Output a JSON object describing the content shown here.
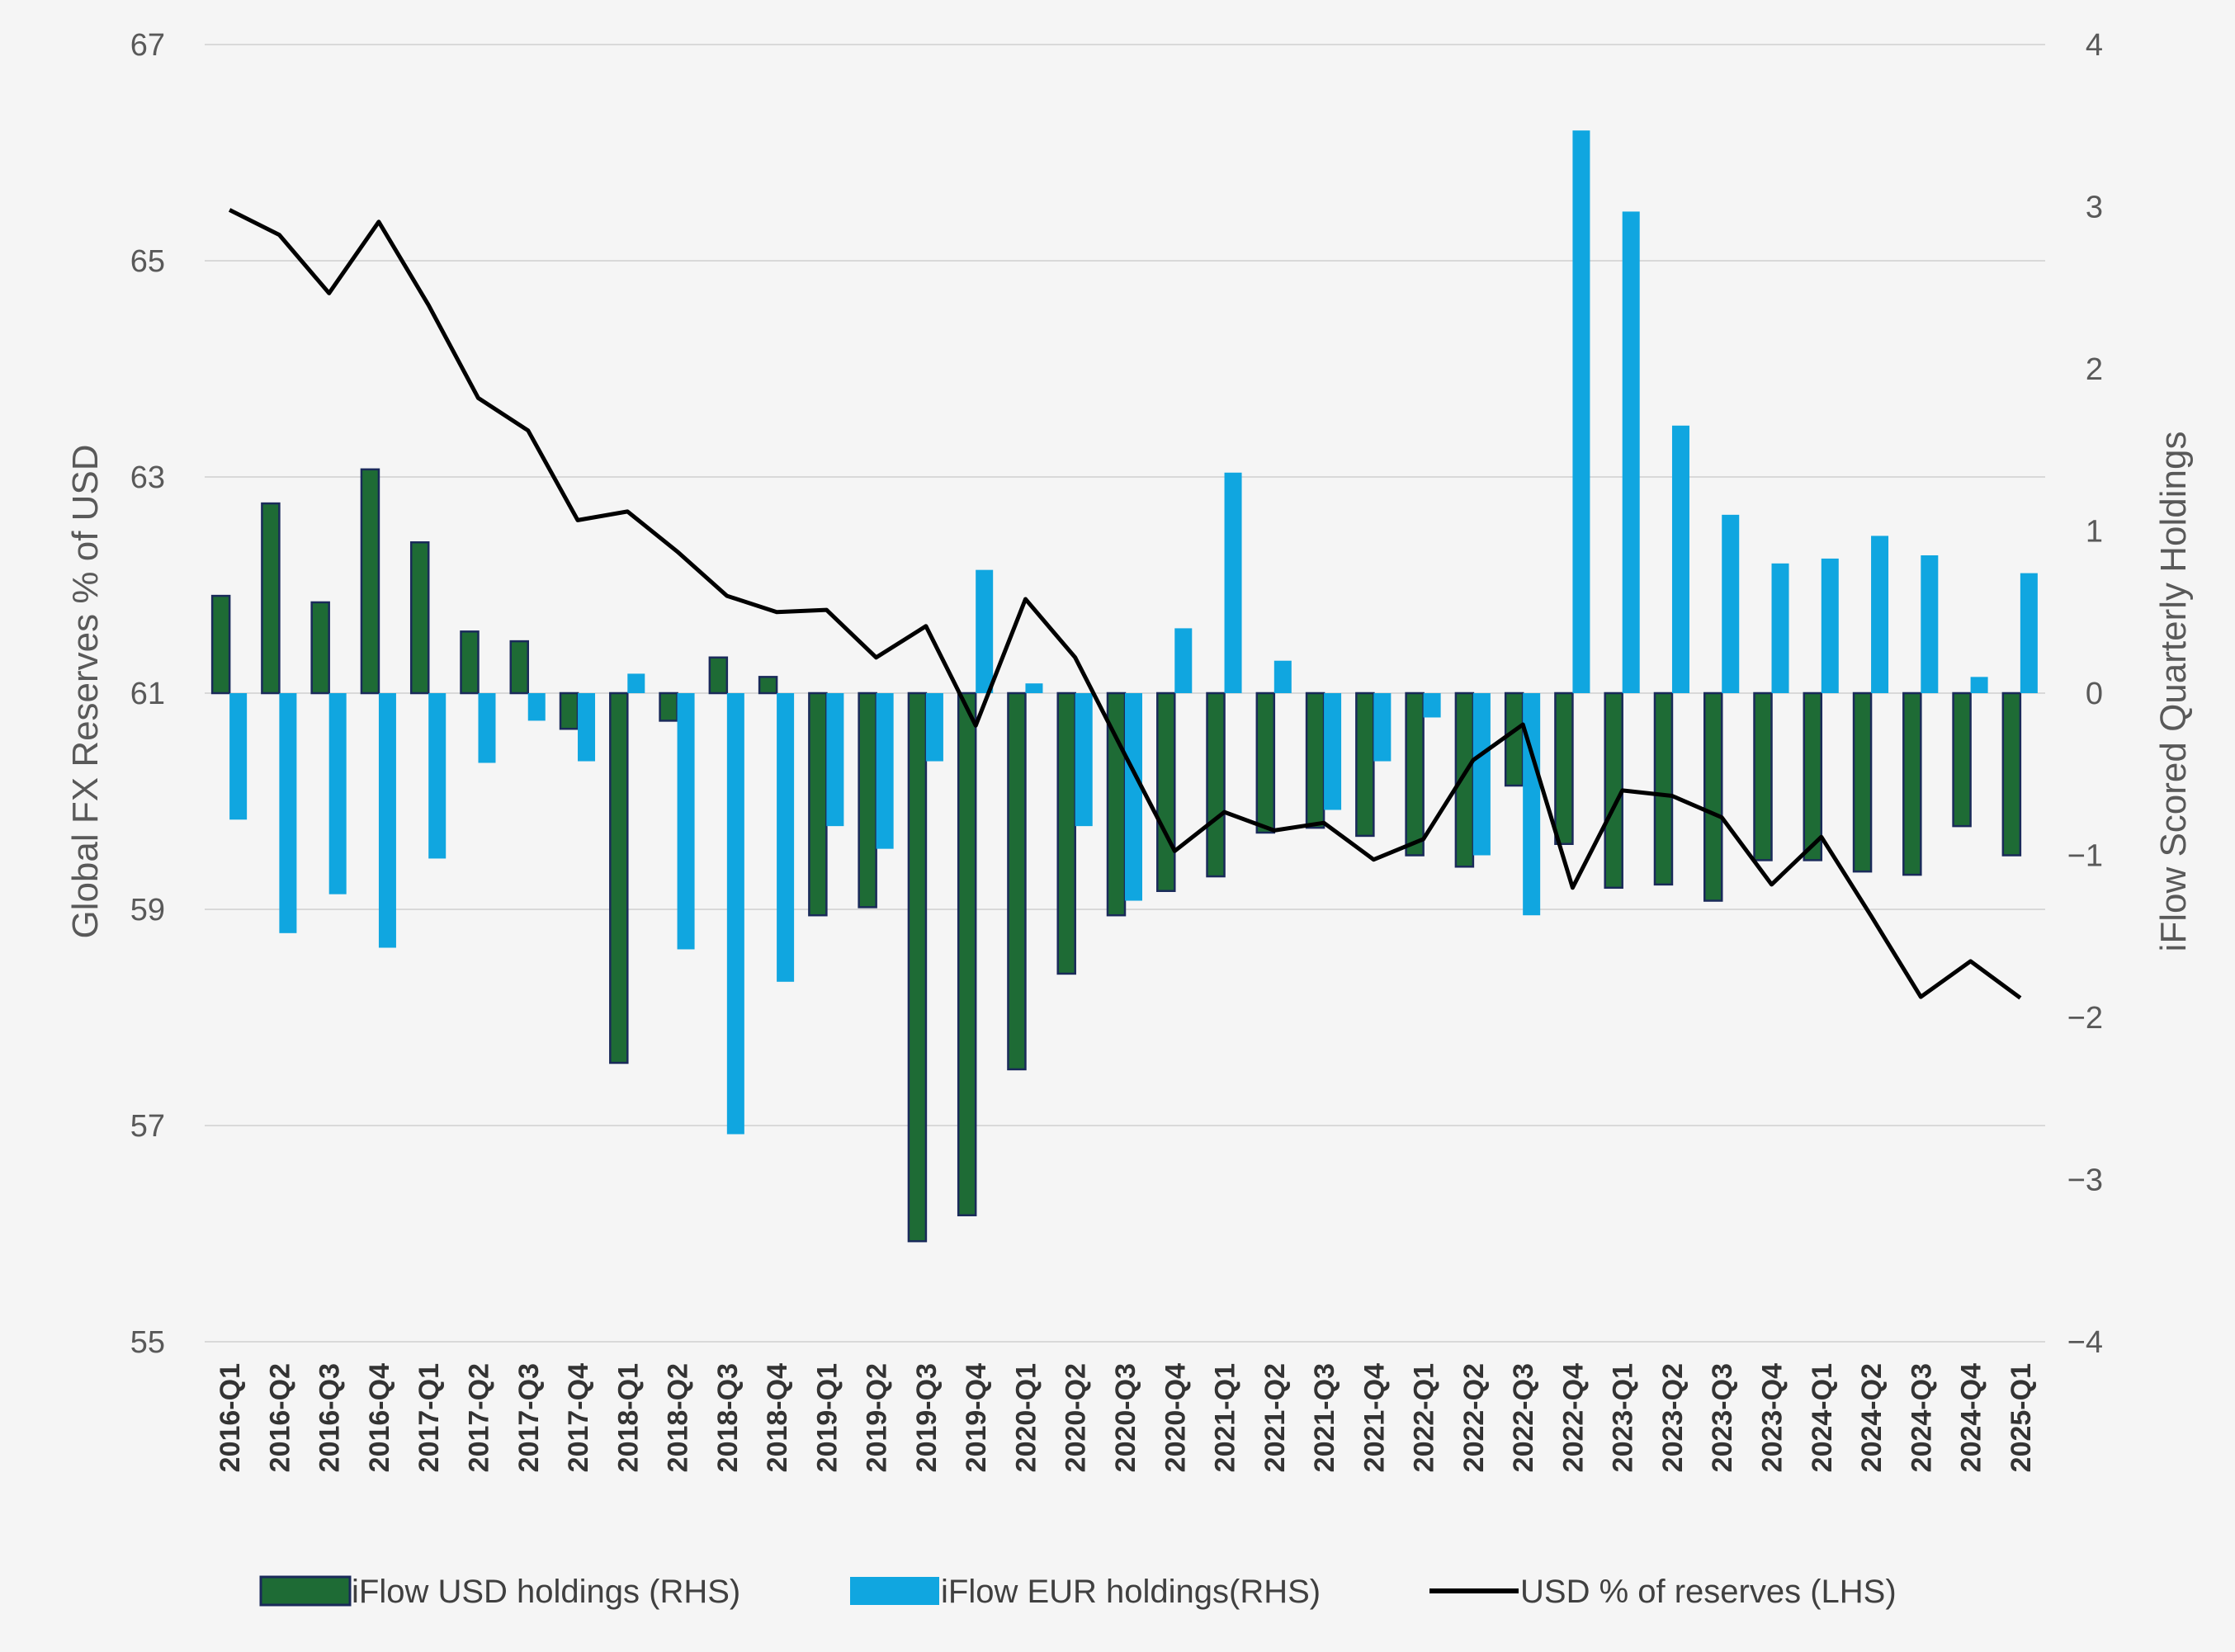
{
  "chart_data": {
    "type": "bar",
    "title": "",
    "categories": [
      "2016-Q1",
      "2016-Q2",
      "2016-Q3",
      "2016-Q4",
      "2017-Q1",
      "2017-Q2",
      "2017-Q3",
      "2017-Q4",
      "2018-Q1",
      "2018-Q2",
      "2018-Q3",
      "2018-Q4",
      "2019-Q1",
      "2019-Q2",
      "2019-Q3",
      "2019-Q4",
      "2020-Q1",
      "2020-Q2",
      "2020-Q3",
      "2020-Q4",
      "2021-Q1",
      "2021-Q2",
      "2021-Q3",
      "2021-Q4",
      "2022-Q1",
      "2022-Q2",
      "2022-Q3",
      "2022-Q4",
      "2023-Q1",
      "2023-Q2",
      "2023-Q3",
      "2023-Q4",
      "2024-Q1",
      "2024-Q2",
      "2024-Q3",
      "2024-Q4",
      "2025-Q1"
    ],
    "ylabel_left": "Global FX Reserves % of USD",
    "ylabel_right": "iFlow Scored Quarterly Holdings",
    "ylim_left": [
      55,
      67
    ],
    "ylim_right": [
      -4,
      4
    ],
    "yticks_left": [
      "67",
      "65",
      "63",
      "61",
      "59",
      "57",
      "55"
    ],
    "yticks_right": [
      "4",
      "3",
      "2",
      "1",
      "0",
      "−1",
      "−2",
      "−3",
      "−4"
    ],
    "grid": true,
    "legend_position": "bottom",
    "series": [
      {
        "name": "iFlow USD holdings (RHS)",
        "type": "bar",
        "axis": "right",
        "color": "#1e6b35",
        "edge_color": "#1a2a5a",
        "values": [
          0.6,
          1.17,
          0.56,
          1.38,
          0.93,
          0.38,
          0.32,
          -0.22,
          -2.28,
          -0.17,
          0.22,
          0.1,
          -1.37,
          -1.32,
          -3.38,
          -3.22,
          -2.32,
          -1.73,
          -1.37,
          -1.22,
          -1.13,
          -0.86,
          -0.83,
          -0.88,
          -1.0,
          -1.07,
          -0.57,
          -0.93,
          -1.2,
          -1.18,
          -1.28,
          -1.03,
          -1.03,
          -1.1,
          -1.12,
          -0.82,
          -1.0
        ]
      },
      {
        "name": "iFlow EUR holdings(RHS)",
        "type": "bar",
        "axis": "right",
        "color": "#10a6e0",
        "values": [
          -0.78,
          -1.48,
          -1.24,
          -1.57,
          -1.02,
          -0.43,
          -0.17,
          -0.42,
          0.12,
          -1.58,
          -2.72,
          -1.78,
          -0.82,
          -0.96,
          -0.42,
          0.76,
          0.06,
          -0.82,
          -1.28,
          0.4,
          1.36,
          0.2,
          -0.72,
          -0.42,
          -0.15,
          -1.0,
          -1.37,
          3.47,
          2.97,
          1.65,
          1.1,
          0.8,
          0.83,
          0.97,
          0.85,
          0.1,
          0.74
        ]
      },
      {
        "name": "USD % of reserves (LHS)",
        "type": "line",
        "axis": "left",
        "color": "#000000",
        "values": [
          65.47,
          65.24,
          64.7,
          65.36,
          64.59,
          63.73,
          63.43,
          62.6,
          62.68,
          62.31,
          61.9,
          61.75,
          61.77,
          61.33,
          61.62,
          60.7,
          61.87,
          61.33,
          60.43,
          59.54,
          59.9,
          59.73,
          59.8,
          59.46,
          59.65,
          60.38,
          60.71,
          59.2,
          60.1,
          60.05,
          59.85,
          59.23,
          59.67,
          58.94,
          58.19,
          58.52,
          58.18
        ]
      }
    ]
  }
}
